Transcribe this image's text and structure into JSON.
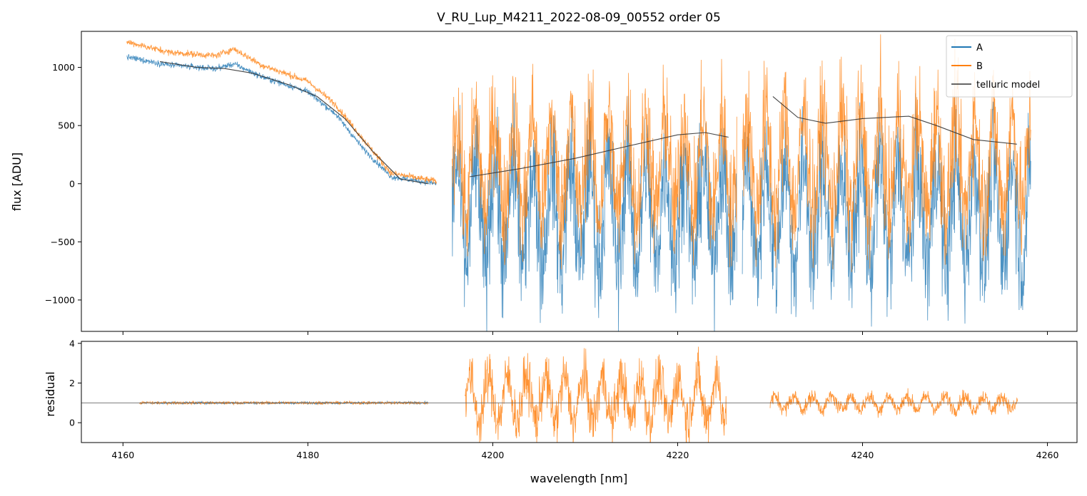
{
  "chart_data": {
    "type": "line",
    "title": "V_RU_Lup_M4211_2022-08-09_00552  order 05",
    "xlabel": "wavelength [nm]",
    "xlim": [
      4155.5,
      4263.2
    ],
    "x_ticks": [
      4160,
      4180,
      4200,
      4220,
      4240,
      4260
    ],
    "x_tick_labels": [
      "4160",
      "4180",
      "4200",
      "4220",
      "4240",
      "4260"
    ],
    "colors": {
      "A": "#1f77b4",
      "B": "#ff7f0e",
      "telluric": "#333333",
      "reference": "#666666"
    },
    "panels": [
      {
        "name": "flux",
        "ylabel": "flux [ADU]",
        "ylim": [
          -1270,
          1310
        ],
        "y_ticks": [
          1000,
          500,
          0,
          -500,
          -1000
        ],
        "y_tick_labels": [
          "1000",
          "500",
          "0",
          "−500",
          "−1000"
        ],
        "legend_position": "top-right",
        "series": [
          {
            "name": "A",
            "segments": [
              {
                "x_range": [
                  4160.4,
                  4193.9
                ],
                "trend": [
                  [
                    4160.4,
                    1090
                  ],
                  [
                    4165,
                    1020
                  ],
                  [
                    4170,
                    990
                  ],
                  [
                    4172,
                    1030
                  ],
                  [
                    4175,
                    920
                  ],
                  [
                    4180,
                    790
                  ],
                  [
                    4183,
                    600
                  ],
                  [
                    4186,
                    300
                  ],
                  [
                    4189,
                    60
                  ],
                  [
                    4193.9,
                    0
                  ]
                ],
                "noise": 22
              },
              {
                "x_range": [
                  4195.6,
                  4226.4
                ],
                "trend": [
                  [
                    4195.6,
                    -260
                  ],
                  [
                    4226.4,
                    -260
                  ]
                ],
                "noise": 480,
                "fringe_period_nm": 2.05
              },
              {
                "x_range": [
                  4227.0,
                  4258.2
                ],
                "trend": [
                  [
                    4227.0,
                    -260
                  ],
                  [
                    4258.2,
                    -260
                  ]
                ],
                "noise": 480,
                "fringe_period_nm": 2.05
              }
            ]
          },
          {
            "name": "B",
            "segments": [
              {
                "x_range": [
                  4160.4,
                  4193.9
                ],
                "trend": [
                  [
                    4160.4,
                    1220
                  ],
                  [
                    4165,
                    1130
                  ],
                  [
                    4170,
                    1100
                  ],
                  [
                    4172,
                    1160
                  ],
                  [
                    4175,
                    1020
                  ],
                  [
                    4180,
                    880
                  ],
                  [
                    4183,
                    680
                  ],
                  [
                    4186,
                    380
                  ],
                  [
                    4189,
                    90
                  ],
                  [
                    4193.9,
                    20
                  ]
                ],
                "noise": 24
              },
              {
                "x_range": [
                  4195.6,
                  4226.4
                ],
                "trend": [
                  [
                    4195.6,
                    160
                  ],
                  [
                    4226.4,
                    160
                  ]
                ],
                "noise": 460,
                "fringe_period_nm": 2.05
              },
              {
                "x_range": [
                  4227.0,
                  4258.2
                ],
                "trend": [
                  [
                    4227.0,
                    170
                  ],
                  [
                    4258.2,
                    170
                  ]
                ],
                "noise": 460,
                "fringe_period_nm": 2.05
              }
            ]
          },
          {
            "name": "telluric model",
            "segments": [
              {
                "points": [
                  [
                    4164,
                    1050
                  ],
                  [
                    4168,
                    1000
                  ],
                  [
                    4171,
                    990
                  ],
                  [
                    4174,
                    950
                  ],
                  [
                    4178,
                    850
                  ],
                  [
                    4181,
                    750
                  ],
                  [
                    4184,
                    560
                  ],
                  [
                    4187,
                    280
                  ],
                  [
                    4190,
                    40
                  ],
                  [
                    4193,
                    0
                  ]
                ]
              },
              {
                "points": [
                  [
                    4197.5,
                    60
                  ],
                  [
                    4203,
                    130
                  ],
                  [
                    4209,
                    220
                  ],
                  [
                    4215,
                    330
                  ],
                  [
                    4220,
                    420
                  ],
                  [
                    4223,
                    440
                  ],
                  [
                    4225.5,
                    400
                  ]
                ]
              },
              {
                "points": [
                  [
                    4230.3,
                    750
                  ],
                  [
                    4233,
                    570
                  ],
                  [
                    4236,
                    520
                  ],
                  [
                    4240,
                    560
                  ],
                  [
                    4245,
                    580
                  ],
                  [
                    4248,
                    500
                  ],
                  [
                    4252,
                    380
                  ],
                  [
                    4256.7,
                    340
                  ]
                ]
              }
            ]
          }
        ]
      },
      {
        "name": "residual",
        "ylabel": "residual",
        "ylim": [
          -1.0,
          4.1
        ],
        "y_ticks": [
          4,
          2,
          0
        ],
        "y_tick_labels": [
          "4",
          "2",
          "0"
        ],
        "reference_line_y": 1.0,
        "series": [
          {
            "name": "A",
            "segments": [
              {
                "x_range": [
                  4161.8,
                  4193.0
                ],
                "trend": [
                  [
                    4161.8,
                    1.0
                  ],
                  [
                    4193.0,
                    1.0
                  ]
                ],
                "noise": 0.05
              }
            ]
          },
          {
            "name": "B",
            "segments": [
              {
                "x_range": [
                  4161.8,
                  4193.0
                ],
                "trend": [
                  [
                    4161.8,
                    1.0
                  ],
                  [
                    4193.0,
                    1.0
                  ]
                ],
                "noise": 0.06
              },
              {
                "x_range": [
                  4197.0,
                  4225.3
                ],
                "trend": [
                  [
                    4197.0,
                    1.2
                  ],
                  [
                    4225.3,
                    1.2
                  ]
                ],
                "noise": 1.2,
                "fringe_period_nm": 2.05
              },
              {
                "x_range": [
                  4230.0,
                  4256.8
                ],
                "trend": [
                  [
                    4230.0,
                    1.0
                  ],
                  [
                    4256.8,
                    1.0
                  ]
                ],
                "noise": 0.35,
                "fringe_period_nm": 2.05
              }
            ]
          }
        ]
      }
    ],
    "legend": [
      "A",
      "B",
      "telluric model"
    ]
  }
}
